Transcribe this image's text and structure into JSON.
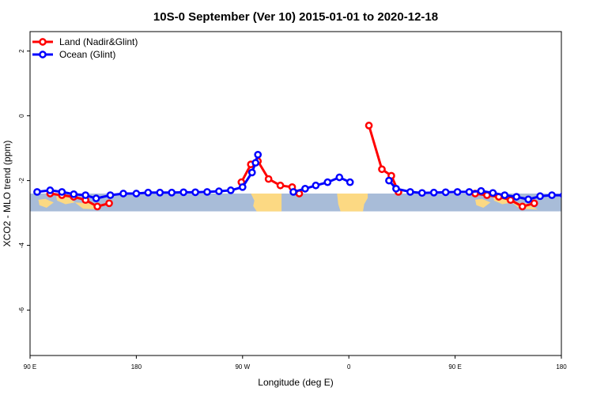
{
  "chart_data": {
    "type": "line",
    "title": "10S-0 September (Ver 10)   2015-01-01 to 2020-12-18",
    "xlabel": "Longitude (deg E)",
    "ylabel": "XCO2 - MLO trend (ppm)",
    "x_ticks": [
      {
        "value": 90,
        "label": "90 E"
      },
      {
        "value": 180,
        "label": "180"
      },
      {
        "value": 270,
        "label": "90 W"
      },
      {
        "value": 360,
        "label": "0"
      },
      {
        "value": 450,
        "label": "90 E"
      },
      {
        "value": 540,
        "label": "180"
      }
    ],
    "y_ticks": [
      {
        "value": 2,
        "label": "2"
      },
      {
        "value": 0,
        "label": "0"
      },
      {
        "value": -2,
        "label": "-2"
      },
      {
        "value": -4,
        "label": "-4"
      },
      {
        "value": -6,
        "label": "-6"
      }
    ],
    "xlim": [
      90,
      540
    ],
    "ylim": [
      -7.4,
      2.6
    ],
    "legend_position": "top-left",
    "grid": false,
    "map_band": {
      "y_top": -2.4,
      "y_bottom": -2.95,
      "ocean_color": "#a8bcd8",
      "land_color": "#fcd983"
    },
    "series": [
      {
        "name": "Land (Nadir&Glint)",
        "color": "#ff0000",
        "segments": [
          [
            [
              107,
              -2.4
            ],
            [
              117,
              -2.45
            ],
            [
              127,
              -2.5
            ],
            [
              137,
              -2.6
            ],
            [
              147,
              -2.8
            ],
            [
              157,
              -2.7
            ]
          ],
          [
            [
              269,
              -2.05
            ],
            [
              277,
              -1.5
            ],
            [
              283,
              -1.4
            ],
            [
              292,
              -1.95
            ],
            [
              302,
              -2.15
            ],
            [
              312,
              -2.2
            ],
            [
              318,
              -2.4
            ]
          ],
          [
            [
              377,
              -0.3
            ],
            [
              388,
              -1.65
            ],
            [
              396,
              -1.85
            ],
            [
              402,
              -2.35
            ]
          ],
          [
            [
              467,
              -2.4
            ],
            [
              477,
              -2.45
            ],
            [
              487,
              -2.5
            ],
            [
              497,
              -2.6
            ],
            [
              507,
              -2.8
            ],
            [
              517,
              -2.7
            ]
          ]
        ]
      },
      {
        "name": "Ocean (Glint)",
        "color": "#0000ff",
        "segments": [
          [
            [
              96,
              -2.35
            ],
            [
              107,
              -2.3
            ],
            [
              117,
              -2.35
            ],
            [
              127,
              -2.42
            ],
            [
              137,
              -2.45
            ],
            [
              146,
              -2.55
            ],
            [
              158,
              -2.45
            ],
            [
              169,
              -2.4
            ],
            [
              180,
              -2.4
            ],
            [
              190,
              -2.37
            ],
            [
              200,
              -2.37
            ],
            [
              210,
              -2.37
            ],
            [
              220,
              -2.36
            ],
            [
              230,
              -2.36
            ],
            [
              240,
              -2.35
            ],
            [
              250,
              -2.33
            ],
            [
              260,
              -2.3
            ],
            [
              270,
              -2.2
            ],
            [
              278,
              -1.75
            ],
            [
              281,
              -1.45
            ],
            [
              283,
              -1.2
            ]
          ],
          [
            [
              313,
              -2.35
            ],
            [
              323,
              -2.25
            ],
            [
              332,
              -2.15
            ],
            [
              342,
              -2.05
            ],
            [
              352,
              -1.9
            ],
            [
              361,
              -2.05
            ]
          ],
          [
            [
              394,
              -2.0
            ],
            [
              400,
              -2.25
            ],
            [
              412,
              -2.35
            ],
            [
              422,
              -2.38
            ],
            [
              432,
              -2.37
            ],
            [
              442,
              -2.36
            ],
            [
              452,
              -2.35
            ],
            [
              462,
              -2.35
            ],
            [
              472,
              -2.32
            ],
            [
              482,
              -2.38
            ],
            [
              492,
              -2.45
            ],
            [
              502,
              -2.5
            ],
            [
              512,
              -2.58
            ],
            [
              522,
              -2.48
            ],
            [
              532,
              -2.45
            ],
            [
              542,
              -2.45
            ]
          ]
        ]
      }
    ]
  }
}
